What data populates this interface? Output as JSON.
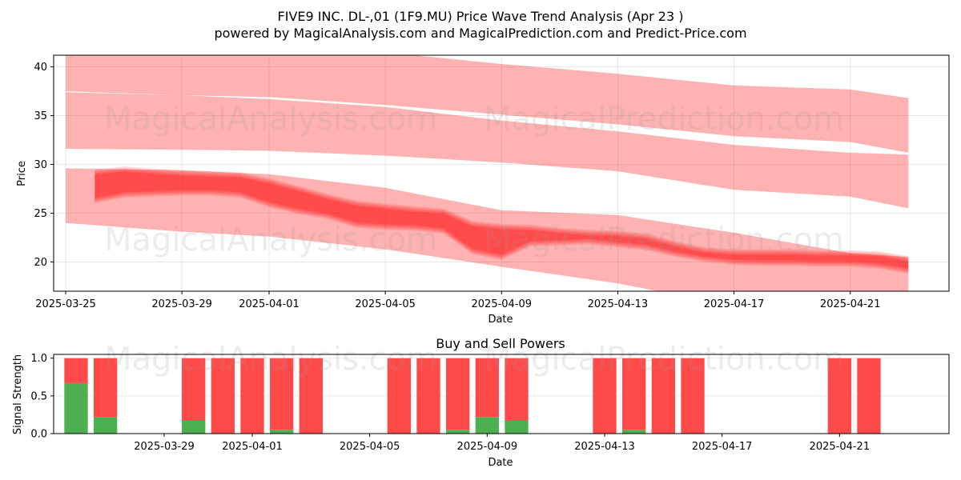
{
  "header": {
    "title": "FIVE9 INC.  DL-,01 (1F9.MU) Price Wave Trend Analysis (Apr 23 )",
    "subtitle": "powered by MagicalAnalysis.com and MagicalPrediction.com and Predict-Price.com"
  },
  "watermarks": [
    "MagicalAnalysis.com",
    "MagicalPrediction.com"
  ],
  "colors": {
    "band": "#ff0000",
    "buy": "#4caf50",
    "sell": "#ff4a4a"
  },
  "chart_data": [
    {
      "type": "area",
      "title": "",
      "xlabel": "Date",
      "ylabel": "Price",
      "xlim": [
        "2025-03-24",
        "2025-04-24"
      ],
      "ylim": [
        17,
        41.2
      ],
      "yticks": [
        20,
        25,
        30,
        35,
        40
      ],
      "xticks": [
        "2025-03-25",
        "2025-03-29",
        "2025-04-01",
        "2025-04-05",
        "2025-04-09",
        "2025-04-13",
        "2025-04-17",
        "2025-04-21"
      ],
      "grid": true,
      "upper_bands": [
        {
          "x": [
            "2025-03-25",
            "2025-03-29",
            "2025-04-01",
            "2025-04-05",
            "2025-04-09",
            "2025-04-13",
            "2025-04-17",
            "2025-04-21",
            "2025-04-23"
          ],
          "upper": [
            41.5,
            41.5,
            41.5,
            41.5,
            40.3,
            39.3,
            38.1,
            37.7,
            36.8
          ],
          "lower": [
            37.5,
            37.1,
            36.9,
            36.1,
            35.1,
            34.1,
            32.9,
            32.3,
            31.2
          ]
        },
        {
          "x": [
            "2025-03-25",
            "2025-03-29",
            "2025-04-01",
            "2025-04-05",
            "2025-04-09",
            "2025-04-13",
            "2025-04-17",
            "2025-04-21",
            "2025-04-23"
          ],
          "upper": [
            37.4,
            37.1,
            36.7,
            35.9,
            34.5,
            33.4,
            32.0,
            31.2,
            31.0
          ],
          "lower": [
            31.6,
            31.5,
            31.4,
            30.9,
            30.2,
            29.3,
            27.4,
            26.7,
            25.5
          ]
        }
      ],
      "series": [
        {
          "x": [
            "2025-03-26",
            "2025-03-27",
            "2025-03-28",
            "2025-03-29",
            "2025-03-30",
            "2025-03-31",
            "2025-04-01",
            "2025-04-02",
            "2025-04-03",
            "2025-04-04",
            "2025-04-05",
            "2025-04-06",
            "2025-04-07",
            "2025-04-08",
            "2025-04-09",
            "2025-04-10",
            "2025-04-11",
            "2025-04-12",
            "2025-04-13",
            "2025-04-14",
            "2025-04-15",
            "2025-04-16",
            "2025-04-17",
            "2025-04-18",
            "2025-04-19",
            "2025-04-20",
            "2025-04-21",
            "2025-04-22",
            "2025-04-23"
          ],
          "upper": [
            29.5,
            29.8,
            29.6,
            29.4,
            29.3,
            29.2,
            28.6,
            27.8,
            27.0,
            26.3,
            26.0,
            25.7,
            25.5,
            24.2,
            23.9,
            23.8,
            23.5,
            23.3,
            23.2,
            22.9,
            22.1,
            21.5,
            21.3,
            21.3,
            21.3,
            21.2,
            21.2,
            21.1,
            20.6
          ],
          "lower": [
            26.0,
            26.6,
            26.7,
            26.8,
            26.8,
            26.6,
            25.6,
            24.9,
            24.4,
            23.5,
            23.3,
            23.2,
            22.9,
            20.8,
            20.2,
            21.6,
            21.7,
            21.8,
            21.5,
            21.2,
            20.5,
            20.0,
            19.7,
            19.6,
            19.6,
            19.5,
            19.5,
            19.3,
            18.8
          ]
        }
      ],
      "lower_bands": [
        {
          "x": [
            "2025-03-25",
            "2025-03-29",
            "2025-04-01",
            "2025-04-05",
            "2025-04-09",
            "2025-04-13",
            "2025-04-17",
            "2025-04-21",
            "2025-04-23"
          ],
          "upper": [
            29.6,
            29.4,
            29.0,
            27.6,
            25.3,
            24.8,
            23.0,
            20.9,
            20.5
          ],
          "lower": [
            24.0,
            23.1,
            22.6,
            21.3,
            19.5,
            17.8,
            15.5,
            14.5,
            14.0
          ]
        }
      ]
    },
    {
      "type": "bar",
      "title": "Buy and Sell Powers",
      "xlabel": "Date",
      "ylabel": "Signal Strength",
      "ylim": [
        0,
        1.05
      ],
      "yticks": [
        0.0,
        0.5,
        1.0
      ],
      "xticks": [
        "2025-03-29",
        "2025-04-01",
        "2025-04-05",
        "2025-04-09",
        "2025-04-13",
        "2025-04-17",
        "2025-04-21"
      ],
      "x": [
        "2025-03-26",
        "2025-03-27",
        "2025-03-30",
        "2025-03-31",
        "2025-04-01",
        "2025-04-02",
        "2025-04-03",
        "2025-04-06",
        "2025-04-07",
        "2025-04-08",
        "2025-04-09",
        "2025-04-10",
        "2025-04-13",
        "2025-04-14",
        "2025-04-15",
        "2025-04-16",
        "2025-04-21",
        "2025-04-22"
      ],
      "series": [
        {
          "name": "",
          "values": [
            0.67,
            0.22,
            0.17,
            0,
            0,
            0.05,
            0,
            0,
            0,
            0.05,
            0.22,
            0.17,
            0,
            0.05,
            0,
            0,
            0,
            0
          ]
        },
        {
          "name": "",
          "values": [
            0.33,
            0.78,
            0.83,
            1,
            1,
            0.95,
            1,
            1,
            1,
            0.95,
            0.78,
            0.83,
            1,
            0.95,
            1,
            1,
            1,
            1
          ]
        }
      ]
    }
  ]
}
